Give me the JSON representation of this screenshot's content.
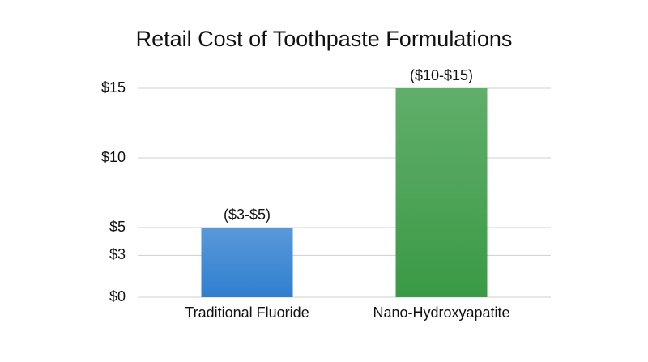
{
  "chart_data": {
    "type": "bar",
    "title": "Retail Cost of Toothpaste Formulations",
    "categories": [
      "Traditional Fluoride",
      "Nano-Hydroxyapatite"
    ],
    "values": [
      5,
      15
    ],
    "value_labels": [
      "($3-$5)",
      "($10-$15)"
    ],
    "colors": [
      "#2f7fd0",
      "#3a9a45"
    ],
    "ylim": [
      0,
      15
    ],
    "yticks": [
      {
        "value": 0,
        "label": "$0"
      },
      {
        "value": 3,
        "label": "$3"
      },
      {
        "value": 5,
        "label": "$5"
      },
      {
        "value": 10,
        "label": "$10"
      },
      {
        "value": 15,
        "label": "$15"
      }
    ],
    "grid": true
  }
}
